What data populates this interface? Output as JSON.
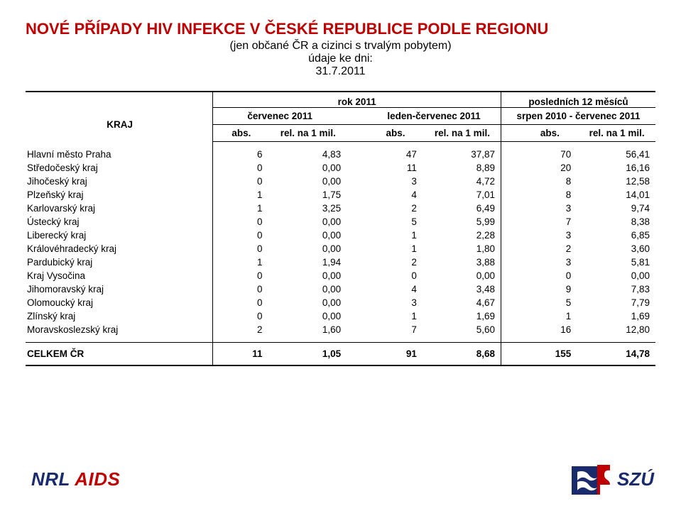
{
  "title": "NOVÉ PŘÍPADY HIV INFEKCE V ČESKÉ REPUBLICE PODLE REGIONU",
  "subtitle": "(jen občané ČR a cizinci s trvalým pobytem)",
  "date_label": "údaje ke dni:",
  "date_value": "31.7.2011",
  "header": {
    "kraj": "KRAJ",
    "grp_year": "rok 2011",
    "grp_last12": "posledních 12 měsíců",
    "period_a": "červenec 2011",
    "period_b": "leden-červenec 2011",
    "period_c": "srpen 2010 - červenec 2011",
    "abs": "abs.",
    "rel": "rel. na 1 mil."
  },
  "rows": [
    {
      "name": "Hlavní město Praha",
      "a_abs": "6",
      "a_rel": "4,83",
      "b_abs": "47",
      "b_rel": "37,87",
      "c_abs": "70",
      "c_rel": "56,41"
    },
    {
      "name": "Středočeský kraj",
      "a_abs": "0",
      "a_rel": "0,00",
      "b_abs": "11",
      "b_rel": "8,89",
      "c_abs": "20",
      "c_rel": "16,16"
    },
    {
      "name": "Jihočeský kraj",
      "a_abs": "0",
      "a_rel": "0,00",
      "b_abs": "3",
      "b_rel": "4,72",
      "c_abs": "8",
      "c_rel": "12,58"
    },
    {
      "name": "Plzeňský kraj",
      "a_abs": "1",
      "a_rel": "1,75",
      "b_abs": "4",
      "b_rel": "7,01",
      "c_abs": "8",
      "c_rel": "14,01"
    },
    {
      "name": "Karlovarský kraj",
      "a_abs": "1",
      "a_rel": "3,25",
      "b_abs": "2",
      "b_rel": "6,49",
      "c_abs": "3",
      "c_rel": "9,74"
    },
    {
      "name": "Ústecký kraj",
      "a_abs": "0",
      "a_rel": "0,00",
      "b_abs": "5",
      "b_rel": "5,99",
      "c_abs": "7",
      "c_rel": "8,38"
    },
    {
      "name": "Liberecký kraj",
      "a_abs": "0",
      "a_rel": "0,00",
      "b_abs": "1",
      "b_rel": "2,28",
      "c_abs": "3",
      "c_rel": "6,85"
    },
    {
      "name": "Královéhradecký kraj",
      "a_abs": "0",
      "a_rel": "0,00",
      "b_abs": "1",
      "b_rel": "1,80",
      "c_abs": "2",
      "c_rel": "3,60"
    },
    {
      "name": "Pardubický kraj",
      "a_abs": "1",
      "a_rel": "1,94",
      "b_abs": "2",
      "b_rel": "3,88",
      "c_abs": "3",
      "c_rel": "5,81"
    },
    {
      "name": "Kraj Vysočina",
      "a_abs": "0",
      "a_rel": "0,00",
      "b_abs": "0",
      "b_rel": "0,00",
      "c_abs": "0",
      "c_rel": "0,00"
    },
    {
      "name": "Jihomoravský kraj",
      "a_abs": "0",
      "a_rel": "0,00",
      "b_abs": "4",
      "b_rel": "3,48",
      "c_abs": "9",
      "c_rel": "7,83"
    },
    {
      "name": "Olomoucký kraj",
      "a_abs": "0",
      "a_rel": "0,00",
      "b_abs": "3",
      "b_rel": "4,67",
      "c_abs": "5",
      "c_rel": "7,79"
    },
    {
      "name": "Zlínský kraj",
      "a_abs": "0",
      "a_rel": "0,00",
      "b_abs": "1",
      "b_rel": "1,69",
      "c_abs": "1",
      "c_rel": "1,69"
    },
    {
      "name": "Moravskoslezský kraj",
      "a_abs": "2",
      "a_rel": "1,60",
      "b_abs": "7",
      "b_rel": "5,60",
      "c_abs": "16",
      "c_rel": "12,80"
    }
  ],
  "total": {
    "name": "CELKEM ČR",
    "a_abs": "11",
    "a_rel": "1,05",
    "b_abs": "91",
    "b_rel": "8,68",
    "c_abs": "155",
    "c_rel": "14,78"
  },
  "colors": {
    "title": "#c00000",
    "logo_blue": "#1a2b6d",
    "logo_red": "#c00000"
  },
  "logos": {
    "nrl_a": "NRL",
    "nrl_b": "AIDS",
    "szu": "SZÚ"
  }
}
